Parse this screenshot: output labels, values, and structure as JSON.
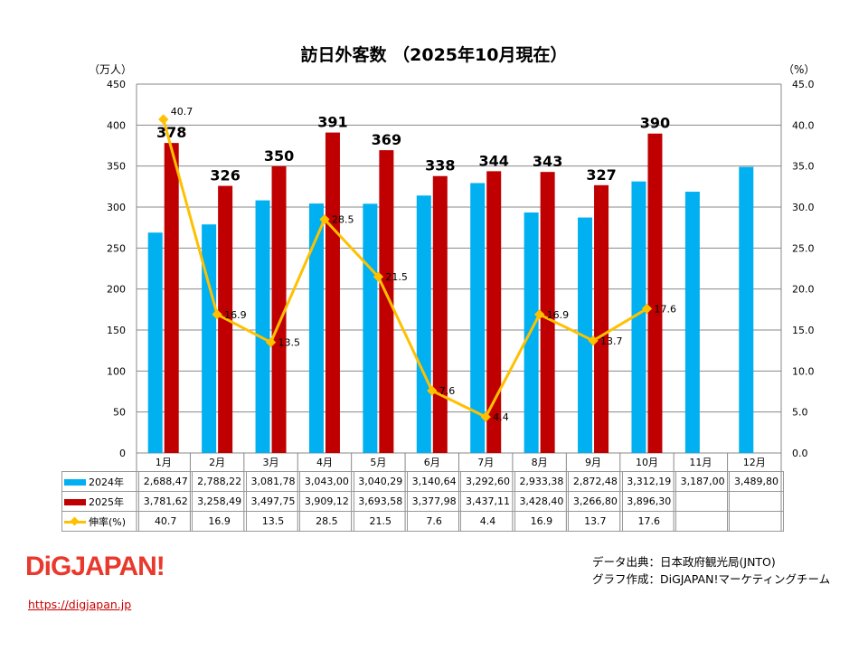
{
  "chart_data": {
    "type": "bar+line",
    "title": "訪日外客数 （2025年10月現在）",
    "ylabel_left": "（万人）",
    "ylabel_right": "（%）",
    "ylim_left": [
      0,
      450
    ],
    "ylim_right": [
      0,
      45
    ],
    "yticks_left": [
      "0",
      "50",
      "100",
      "150",
      "200",
      "250",
      "300",
      "350",
      "400",
      "450"
    ],
    "yticks_right": [
      "0.0",
      "5.0",
      "10.0",
      "15.0",
      "20.0",
      "25.0",
      "30.0",
      "35.0",
      "40.0",
      "45.0"
    ],
    "categories": [
      "1月",
      "2月",
      "3月",
      "4月",
      "5月",
      "6月",
      "7月",
      "8月",
      "9月",
      "10月",
      "11月",
      "12月"
    ],
    "series": [
      {
        "name": "2024年",
        "type": "bar",
        "axis": "left",
        "color": "#00b0f0",
        "values": [
          268.847,
          278.822,
          308.178,
          304.3,
          304.029,
          314.064,
          329.26,
          293.338,
          287.248,
          331.219,
          318.7,
          348.98
        ],
        "table": [
          "2,688,47",
          "2,788,22",
          "3,081,78",
          "3,043,00",
          "3,040,29",
          "3,140,64",
          "3,292,60",
          "2,933,38",
          "2,872,48",
          "3,312,19",
          "3,187,00",
          "3,489,80"
        ]
      },
      {
        "name": "2025年",
        "type": "bar",
        "axis": "left",
        "color": "#c00000",
        "values": [
          378.162,
          325.849,
          349.775,
          390.912,
          369.358,
          337.798,
          343.711,
          342.84,
          326.68,
          389.63,
          null,
          null
        ],
        "labels": [
          "378",
          "326",
          "350",
          "391",
          "369",
          "338",
          "344",
          "343",
          "327",
          "390",
          "",
          ""
        ],
        "table": [
          "3,781,62",
          "3,258,49",
          "3,497,75",
          "3,909,12",
          "3,693,58",
          "3,377,98",
          "3,437,11",
          "3,428,40",
          "3,266,80",
          "3,896,30",
          "",
          ""
        ]
      },
      {
        "name": "伸率(%)",
        "type": "line",
        "axis": "right",
        "color": "#ffc000",
        "values": [
          40.7,
          16.9,
          13.5,
          28.5,
          21.5,
          7.6,
          4.4,
          16.9,
          13.7,
          17.6,
          null,
          null
        ],
        "table": [
          "40.7",
          "16.9",
          "13.5",
          "28.5",
          "21.5",
          "7.6",
          "4.4",
          "16.9",
          "13.7",
          "17.6",
          "",
          ""
        ]
      }
    ],
    "grid": "horizontal"
  },
  "footer": {
    "source": "データ出典：日本政府観光局(JNTO)",
    "credit": "グラフ作成：DiGJAPAN!マーケティングチーム",
    "logo": "DiGJAPAN!",
    "url": "https://digjapan.jp"
  }
}
